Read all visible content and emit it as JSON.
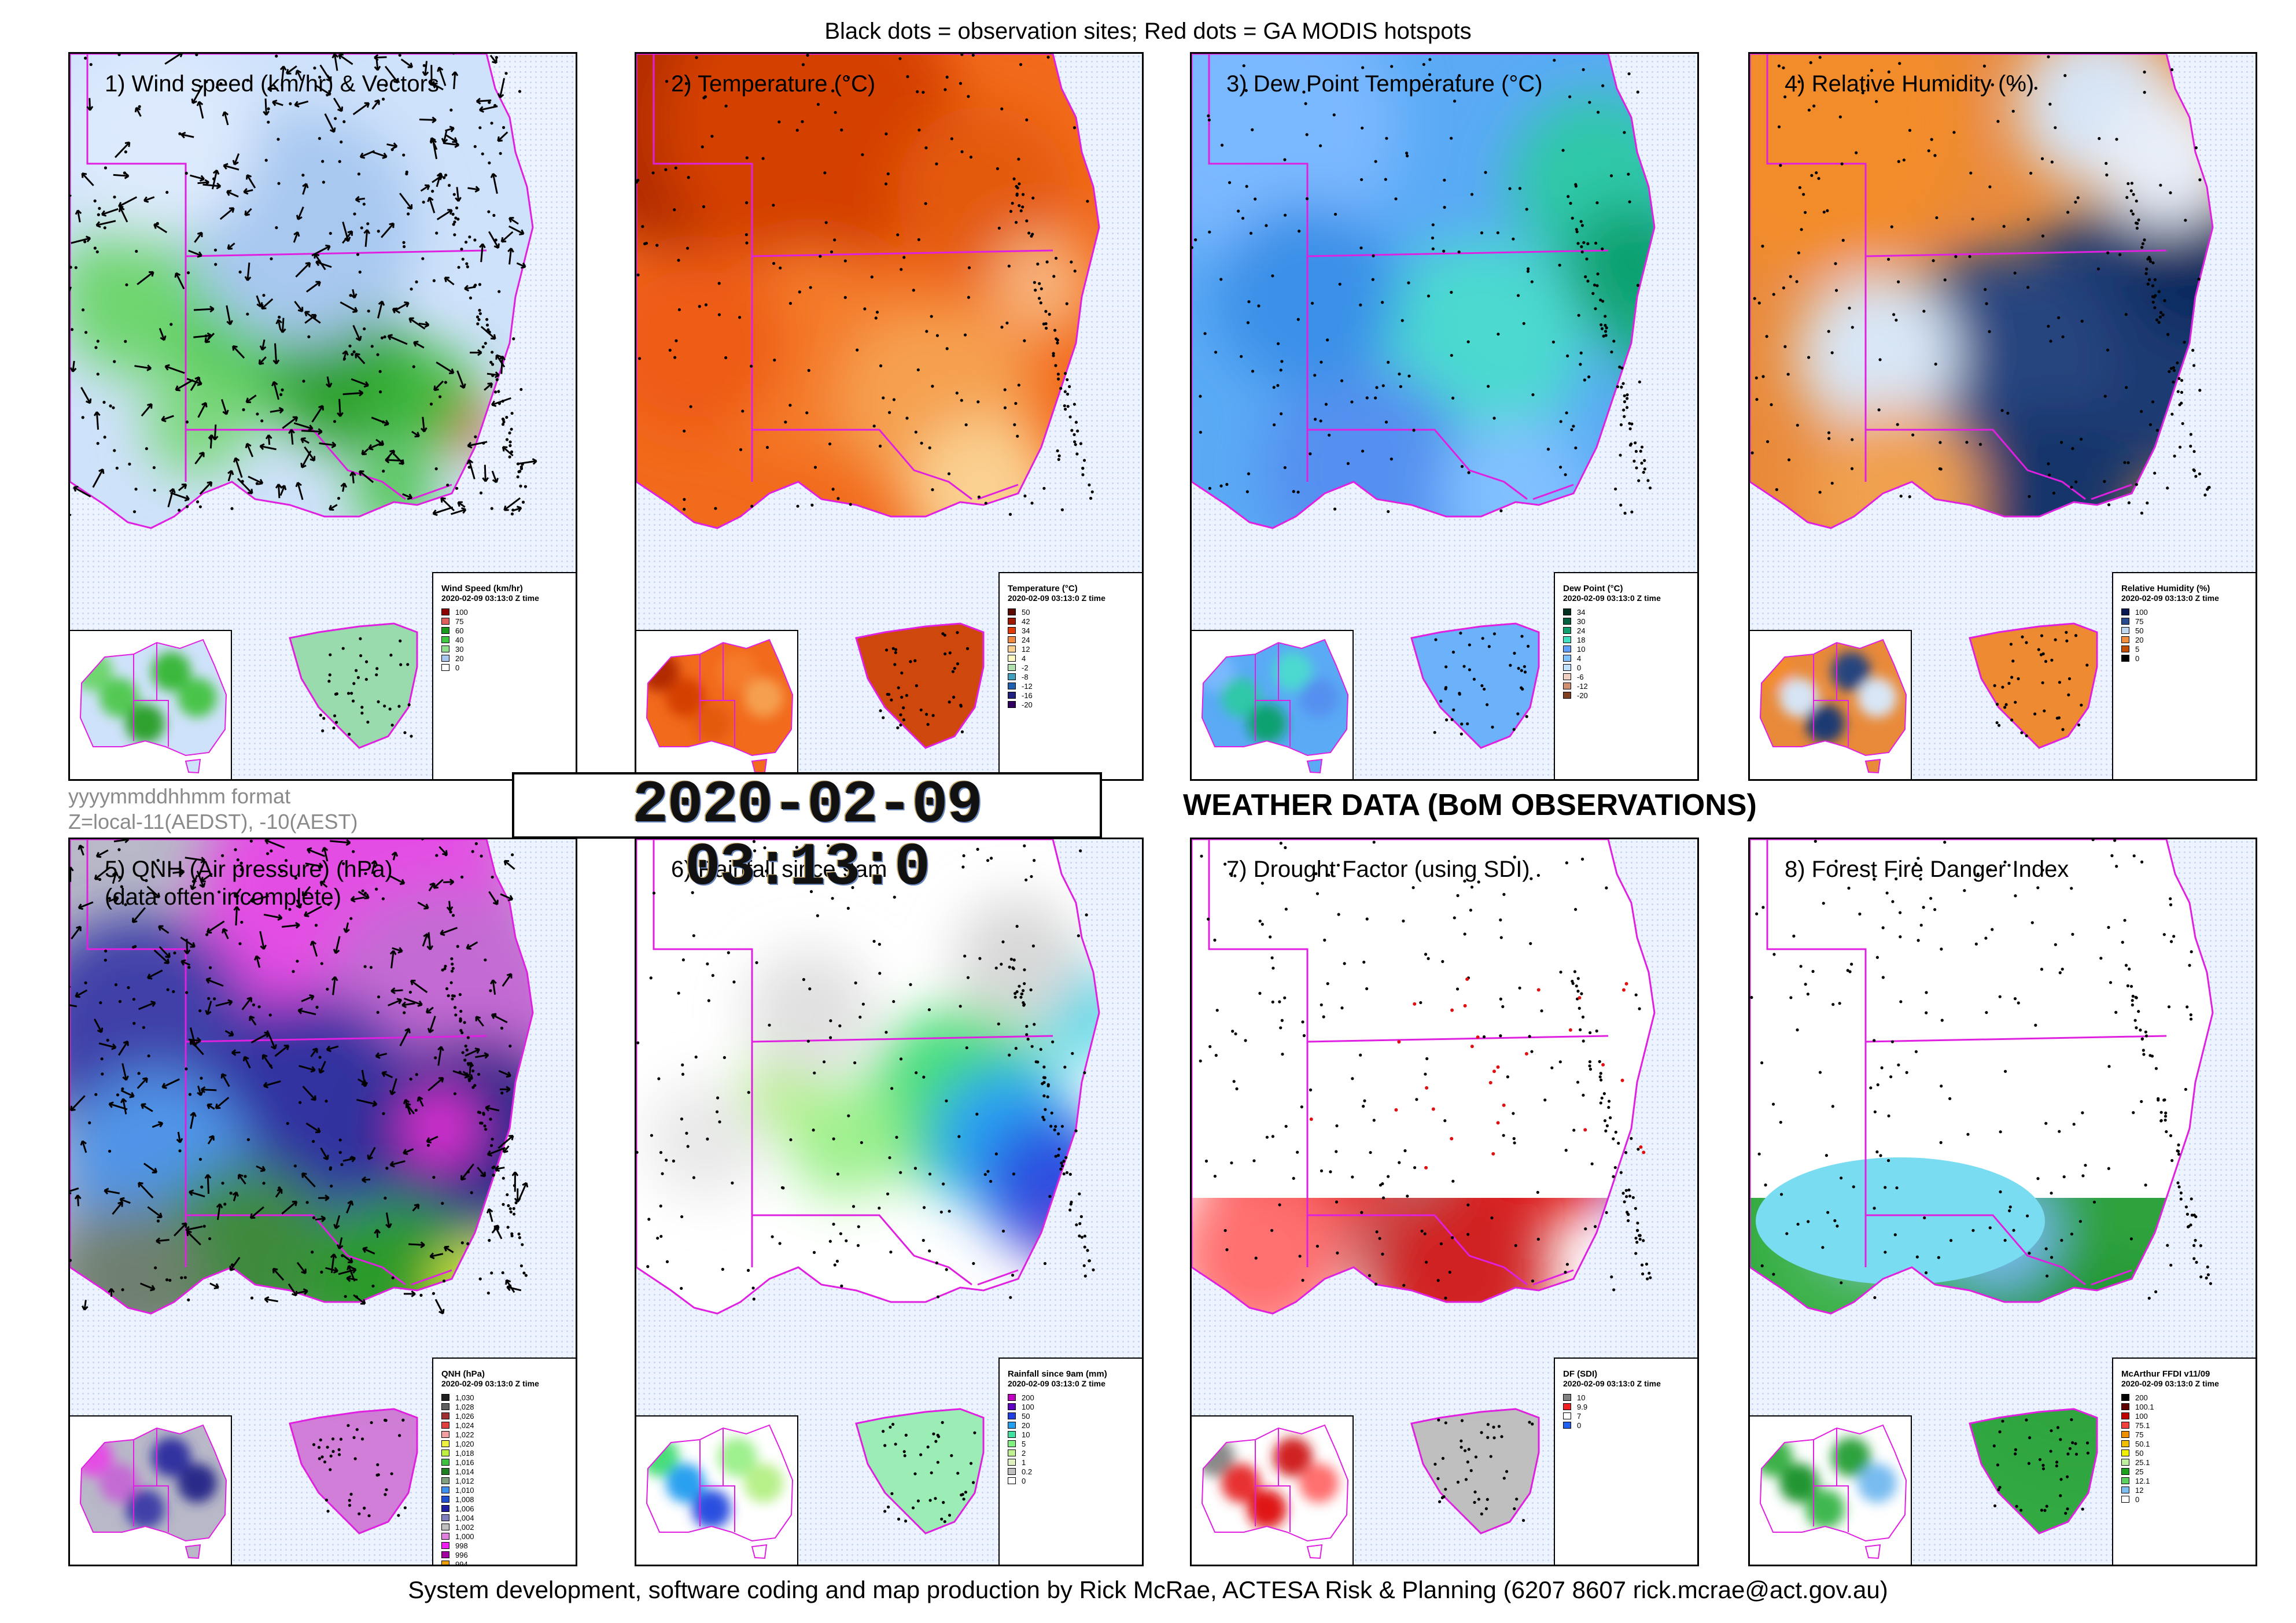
{
  "header": "Black dots = observation sites; Red dots = GA MODIS hotspots",
  "footer": "System development, software coding and map production by Rick McRae, ACTESA Risk & Planning (6207 8607 rick.mcrae@act.gov.au)",
  "format_note": [
    "yyyymmddhhmm format",
    "Z=local-11(AEDST), -10(AEST)"
  ],
  "timestamp": "2020-02-09 03:13:0",
  "heading": "WEATHER DATA (BoM OBSERVATIONS)",
  "colors": {
    "state_borders": "#e020e0",
    "panel_border": "#000000",
    "obs_dot": "#000000",
    "hotspot_dot": "#e01010"
  },
  "panels": [
    {
      "title": "1) Wind speed (km/hr) & Vectors",
      "legend": {
        "title": "Wind Speed (km/hr)",
        "subtitle": "2020-02-09 03:13:0 Z time",
        "entries": [
          {
            "label": "100",
            "color": "#8b0000"
          },
          {
            "label": "75",
            "color": "#e06060"
          },
          {
            "label": "60",
            "color": "#1a9a1a"
          },
          {
            "label": "40",
            "color": "#40c840"
          },
          {
            "label": "30",
            "color": "#90e090"
          },
          {
            "label": "20",
            "color": "#a8c8f0"
          },
          {
            "label": "0",
            "color": "#ffffff"
          }
        ]
      }
    },
    {
      "title": "2) Temperature (°C)",
      "legend": {
        "title": "Temperature (°C)",
        "subtitle": "2020-02-09 03:13:0 Z time",
        "entries": [
          {
            "label": "50",
            "color": "#5a0a00"
          },
          {
            "label": "42",
            "color": "#a01800"
          },
          {
            "label": "34",
            "color": "#e03a00"
          },
          {
            "label": "24",
            "color": "#f08a40"
          },
          {
            "label": "12",
            "color": "#fad090"
          },
          {
            "label": "4",
            "color": "#fff8c0"
          },
          {
            "label": "-2",
            "color": "#b0e0b0"
          },
          {
            "label": "-8",
            "color": "#40a0c0"
          },
          {
            "label": "-12",
            "color": "#2060b0"
          },
          {
            "label": "-16",
            "color": "#202080"
          },
          {
            "label": "-20",
            "color": "#300060"
          }
        ]
      }
    },
    {
      "title": "3) Dew Point Temperature (°C)",
      "legend": {
        "title": "Dew Point (°C)",
        "subtitle": "2020-02-09 03:13:0 Z time",
        "entries": [
          {
            "label": "34",
            "color": "#003020"
          },
          {
            "label": "30",
            "color": "#006040"
          },
          {
            "label": "24",
            "color": "#10a070"
          },
          {
            "label": "18",
            "color": "#40e0c0"
          },
          {
            "label": "10",
            "color": "#60a0ff"
          },
          {
            "label": "4",
            "color": "#80c0ff"
          },
          {
            "label": "0",
            "color": "#c0e0ff"
          },
          {
            "label": "-6",
            "color": "#f0d0c0"
          },
          {
            "label": "-12",
            "color": "#d09070"
          },
          {
            "label": "-20",
            "color": "#804020"
          }
        ]
      }
    },
    {
      "title": "4) Relative Humidity (%)",
      "legend": {
        "title": "Relative Humidity (%)",
        "subtitle": "2020-02-09 03:13:0 Z time",
        "entries": [
          {
            "label": "100",
            "color": "#0a1a50"
          },
          {
            "label": "75",
            "color": "#2a4a90"
          },
          {
            "label": "50",
            "color": "#c0d8f0"
          },
          {
            "label": "20",
            "color": "#f09040"
          },
          {
            "label": "5",
            "color": "#c05000"
          },
          {
            "label": "0",
            "color": "#000000"
          }
        ]
      }
    },
    {
      "title": "5) QNH (Air pressure) (hPa)\n(data often incomplete)",
      "legend": {
        "title": "QNH (hPa)",
        "subtitle": "2020-02-09 03:13:0 Z time",
        "entries": [
          {
            "label": "1,030",
            "color": "#202020"
          },
          {
            "label": "1,028",
            "color": "#606060"
          },
          {
            "label": "1,026",
            "color": "#a03030"
          },
          {
            "label": "1,024",
            "color": "#e04040"
          },
          {
            "label": "1,022",
            "color": "#f0a0a0"
          },
          {
            "label": "1,020",
            "color": "#f0f040"
          },
          {
            "label": "1,018",
            "color": "#c0f040"
          },
          {
            "label": "1,016",
            "color": "#40c040"
          },
          {
            "label": "1,014",
            "color": "#208020"
          },
          {
            "label": "1,012",
            "color": "#80a080"
          },
          {
            "label": "1,010",
            "color": "#4090f0"
          },
          {
            "label": "1,008",
            "color": "#2050d0"
          },
          {
            "label": "1,006",
            "color": "#2020a0"
          },
          {
            "label": "1,004",
            "color": "#8080c0"
          },
          {
            "label": "1,002",
            "color": "#c0c0c0"
          },
          {
            "label": "1,000",
            "color": "#e080e0"
          },
          {
            "label": "998",
            "color": "#f020f0"
          },
          {
            "label": "996",
            "color": "#a000a0"
          },
          {
            "label": "994",
            "color": "#f0a000"
          }
        ]
      }
    },
    {
      "title": "6) Rainfall since 9am",
      "legend": {
        "title": "Rainfall since 9am (mm)",
        "subtitle": "2020-02-09 03:13:0 Z time",
        "entries": [
          {
            "label": "200",
            "color": "#c000c0"
          },
          {
            "label": "100",
            "color": "#6000c0"
          },
          {
            "label": "50",
            "color": "#2040e0"
          },
          {
            "label": "20",
            "color": "#20a0f0"
          },
          {
            "label": "10",
            "color": "#40e0a0"
          },
          {
            "label": "5",
            "color": "#80f080"
          },
          {
            "label": "2",
            "color": "#c0f090"
          },
          {
            "label": "1",
            "color": "#e0f0c0"
          },
          {
            "label": "0.2",
            "color": "#c0c0c0"
          },
          {
            "label": "0",
            "color": "#ffffff"
          }
        ]
      }
    },
    {
      "title": "7) Drought Factor (using SDI)",
      "legend": {
        "title": "DF (SDI)",
        "subtitle": "2020-02-09 03:13:0 Z time",
        "entries": [
          {
            "label": "10",
            "color": "#808080"
          },
          {
            "label": "9.9",
            "color": "#f02020"
          },
          {
            "label": "7",
            "color": "#ffffff"
          },
          {
            "label": "0",
            "color": "#2060f0"
          }
        ]
      }
    },
    {
      "title": "8) Forest Fire Danger Index",
      "legend": {
        "title": "McArthur FFDI v11/09",
        "subtitle": "2020-02-09 03:13:0 Z time",
        "entries": [
          {
            "label": "200",
            "color": "#000000"
          },
          {
            "label": "100.1",
            "color": "#600000"
          },
          {
            "label": "100",
            "color": "#c00000"
          },
          {
            "label": "75.1",
            "color": "#f04040"
          },
          {
            "label": "75",
            "color": "#f09000"
          },
          {
            "label": "50.1",
            "color": "#f0c000"
          },
          {
            "label": "50",
            "color": "#f0f000"
          },
          {
            "label": "25.1",
            "color": "#c0f0a0"
          },
          {
            "label": "25",
            "color": "#20a020"
          },
          {
            "label": "12.1",
            "color": "#60d060"
          },
          {
            "label": "12",
            "color": "#80c0f0"
          },
          {
            "label": "0",
            "color": "#ffffff"
          }
        ]
      }
    }
  ]
}
